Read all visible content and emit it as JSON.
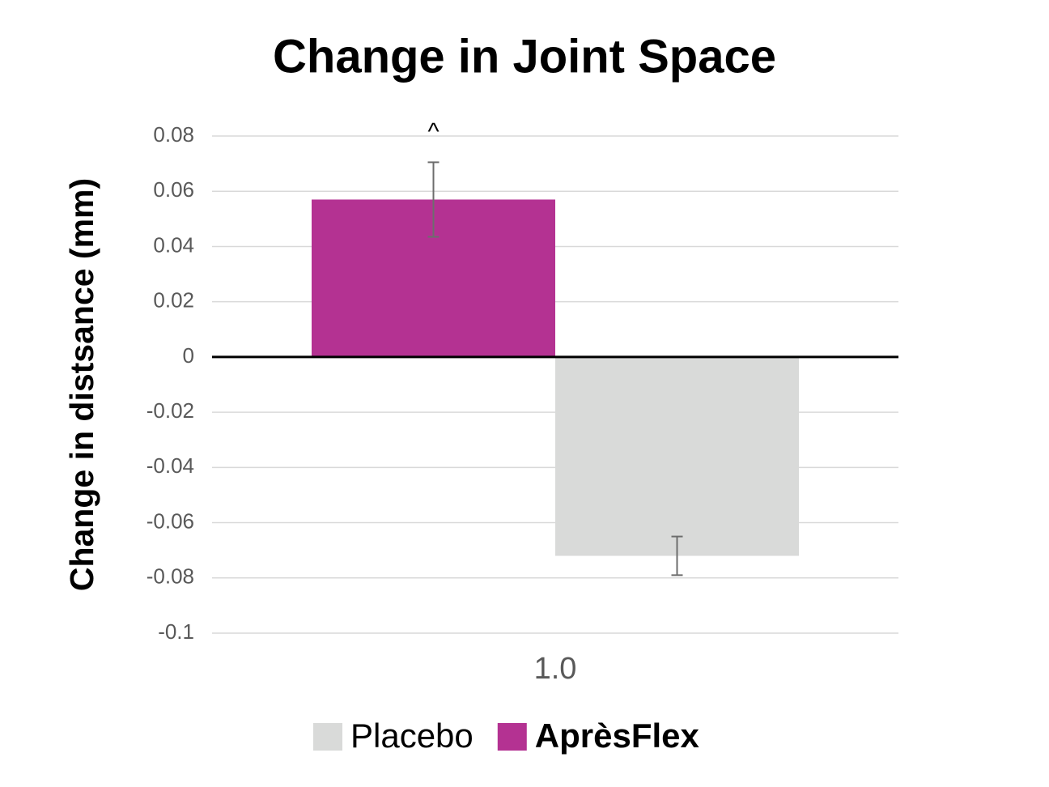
{
  "chart_data": {
    "type": "bar",
    "title": "Change in Joint Space",
    "y_label": "Change in distsance (mm)",
    "categories": [
      "1.0"
    ],
    "series": [
      {
        "name": "AprèsFlex",
        "color": "#b43292",
        "values": [
          0.057
        ],
        "errors": [
          0.0135
        ],
        "annotation": "^"
      },
      {
        "name": "Placebo",
        "color": "#d9dad9",
        "values": [
          -0.072
        ],
        "errors": [
          0.007
        ]
      }
    ],
    "ylim": [
      -0.1,
      0.08
    ],
    "yticks": [
      -0.1,
      -0.08,
      -0.06,
      -0.04,
      -0.02,
      0,
      0.02,
      0.04,
      0.06,
      0.08
    ],
    "grid": true,
    "legend": "bottom",
    "legend_reversed": true
  }
}
